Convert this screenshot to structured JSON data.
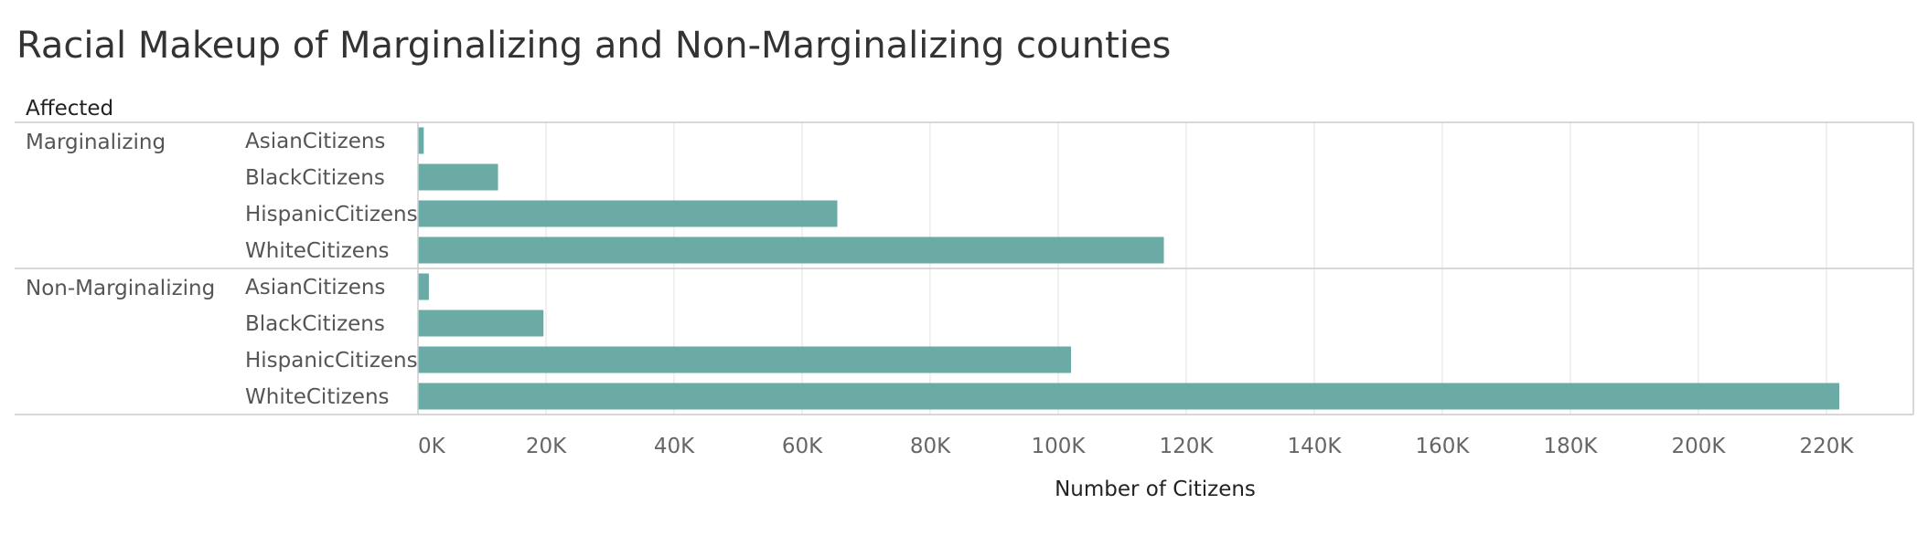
{
  "chart_data": {
    "type": "bar",
    "orientation": "horizontal",
    "title": "Racial Makeup of Marginalizing and Non-Marginalizing counties",
    "row_header": "Affected",
    "xlabel": "Number of Citizens",
    "ylabel": "",
    "xlim": [
      0,
      230000
    ],
    "x_ticks": [
      0,
      20000,
      40000,
      60000,
      80000,
      100000,
      120000,
      140000,
      160000,
      180000,
      200000,
      220000
    ],
    "x_tick_labels": [
      "0K",
      "20K",
      "40K",
      "60K",
      "80K",
      "100K",
      "120K",
      "140K",
      "160K",
      "180K",
      "200K",
      "220K"
    ],
    "grid": true,
    "color": "#6aaba6",
    "groups": [
      {
        "label": "Marginalizing",
        "categories": [
          "AsianCitizens",
          "BlackCitizens",
          "HispanicCitizens",
          "WhiteCitizens"
        ],
        "values": [
          900,
          12500,
          65500,
          116500
        ]
      },
      {
        "label": "Non-Marginalizing",
        "categories": [
          "AsianCitizens",
          "BlackCitizens",
          "HispanicCitizens",
          "WhiteCitizens"
        ],
        "values": [
          1700,
          19600,
          102000,
          222000
        ]
      }
    ]
  }
}
